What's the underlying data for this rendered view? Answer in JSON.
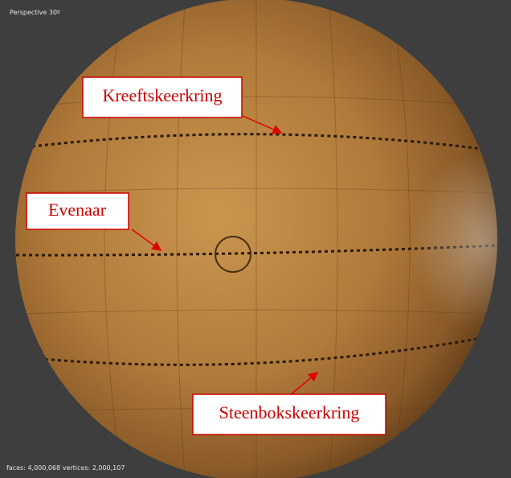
{
  "viewport": {
    "projection": "Perspective 30º",
    "stats": "faces: 4,000,068 vertices: 2,000,107"
  },
  "annotations": [
    {
      "label": "Kreeftskeerkring"
    },
    {
      "label": "Evenaar"
    },
    {
      "label": "Steenbokskeerkring"
    }
  ]
}
